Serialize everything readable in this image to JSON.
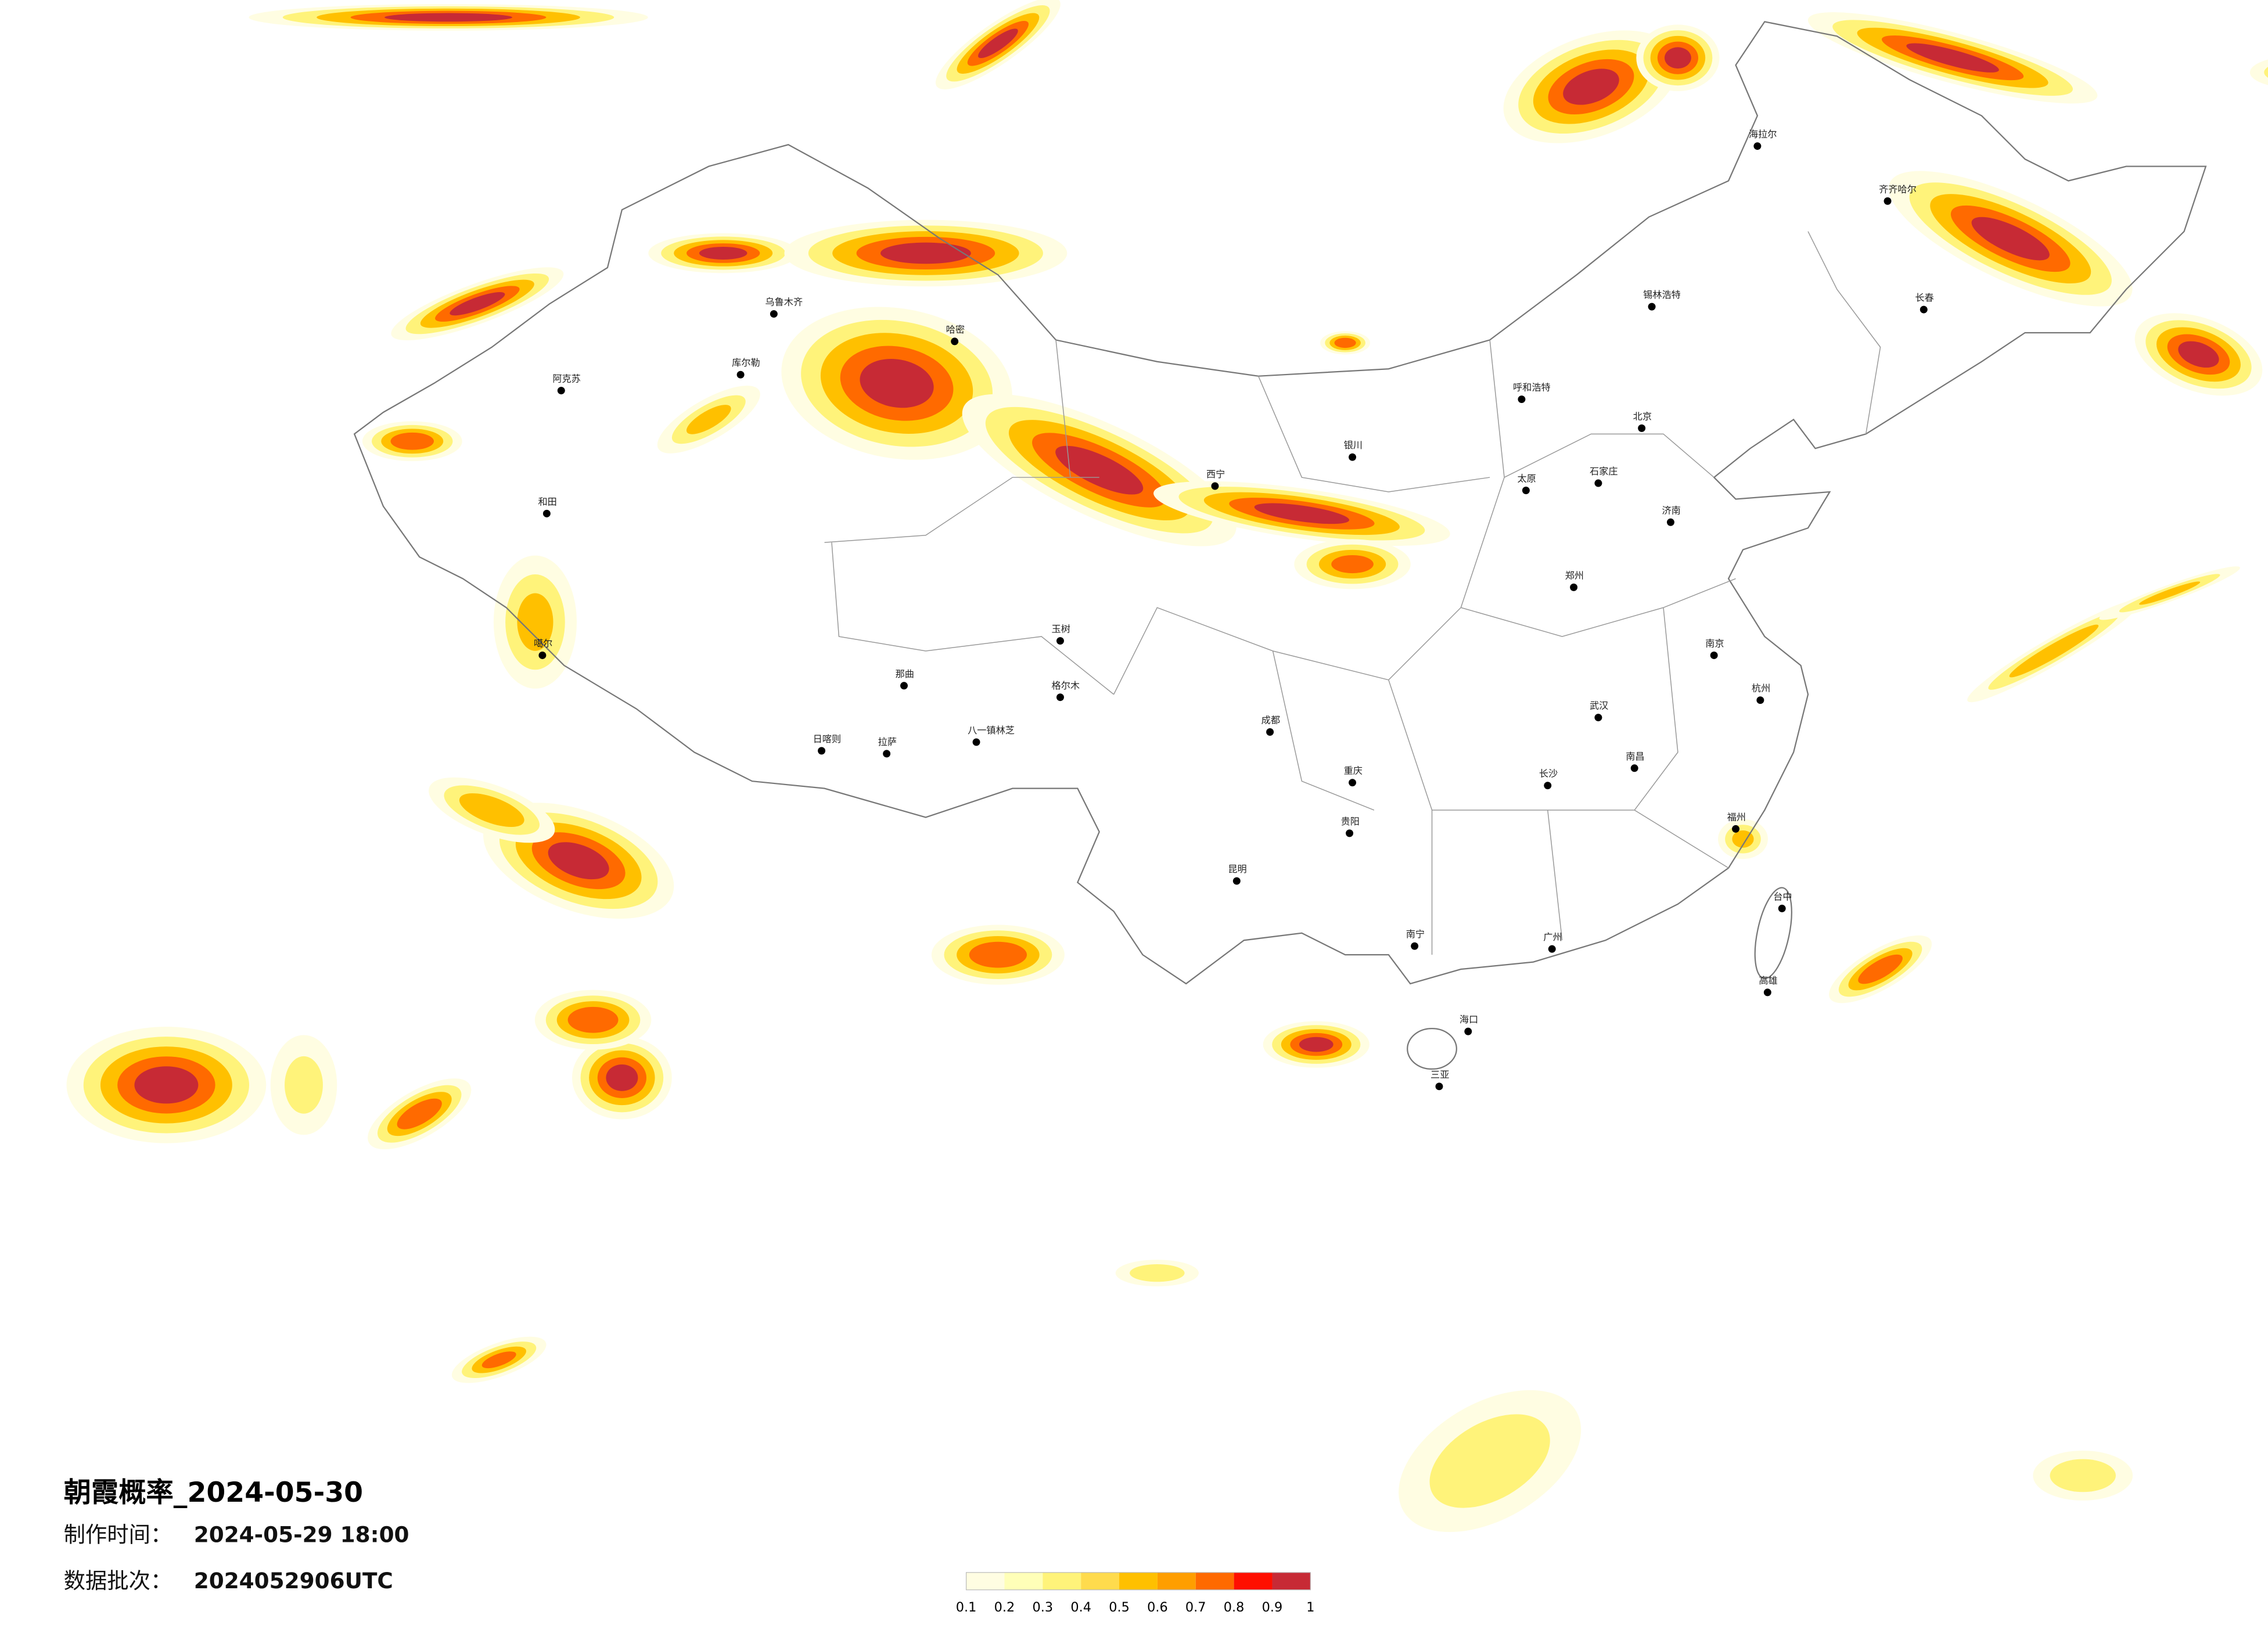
{
  "title": "朝霞概率_2024-05-30",
  "produced": {
    "label": "制作时间：",
    "value": "2024-05-29 18:00"
  },
  "batch": {
    "label": "数据批次：",
    "value": "2024052906UTC"
  },
  "legend": {
    "ticks": [
      0.1,
      0.2,
      0.3,
      0.4,
      0.5,
      0.6,
      0.7,
      0.8,
      0.9,
      1
    ],
    "colors": [
      "#fffde2",
      "#ffffb8",
      "#fff37a",
      "#ffdb4d",
      "#ffc000",
      "#ff9e00",
      "#ff6a00",
      "#ff0f00",
      "#c72a35"
    ]
  },
  "cities": [
    "乌鲁木齐",
    "库尔勒",
    "阿克苏",
    "和田",
    "噶尔",
    "日喀则",
    "拉萨",
    "那曲",
    "八一镇林芝",
    "格尔木",
    "玉树",
    "哈密",
    "呼和浩特",
    "锡林浩特",
    "海拉尔",
    "齐齐哈尔",
    "长春",
    "北京",
    "石家庄",
    "济南",
    "太原",
    "郑州",
    "武汉",
    "长沙",
    "南昌",
    "南京",
    "杭州",
    "福州",
    "广州",
    "南宁",
    "海口",
    "三亚",
    "贵阳",
    "昆明",
    "成都",
    "重庆",
    "台中",
    "高雄",
    "西宁",
    "银川"
  ]
}
